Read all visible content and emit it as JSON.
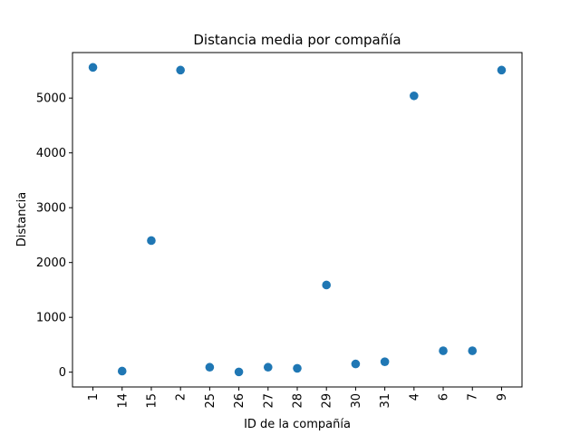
{
  "chart_data": {
    "type": "scatter",
    "title": "Distancia media por compañía",
    "xlabel": "ID de la compañía",
    "ylabel": "Distancia",
    "categories": [
      "1",
      "14",
      "15",
      "2",
      "25",
      "26",
      "27",
      "28",
      "29",
      "30",
      "31",
      "4",
      "6",
      "7",
      "9"
    ],
    "values": [
      5560,
      20,
      2400,
      5510,
      90,
      5,
      90,
      70,
      1590,
      150,
      190,
      5040,
      390,
      390,
      5510
    ],
    "ylim": [
      -270,
      5830
    ],
    "yticks": [
      0,
      1000,
      2000,
      3000,
      4000,
      5000
    ],
    "grid": false,
    "color": "#1f77b4"
  }
}
